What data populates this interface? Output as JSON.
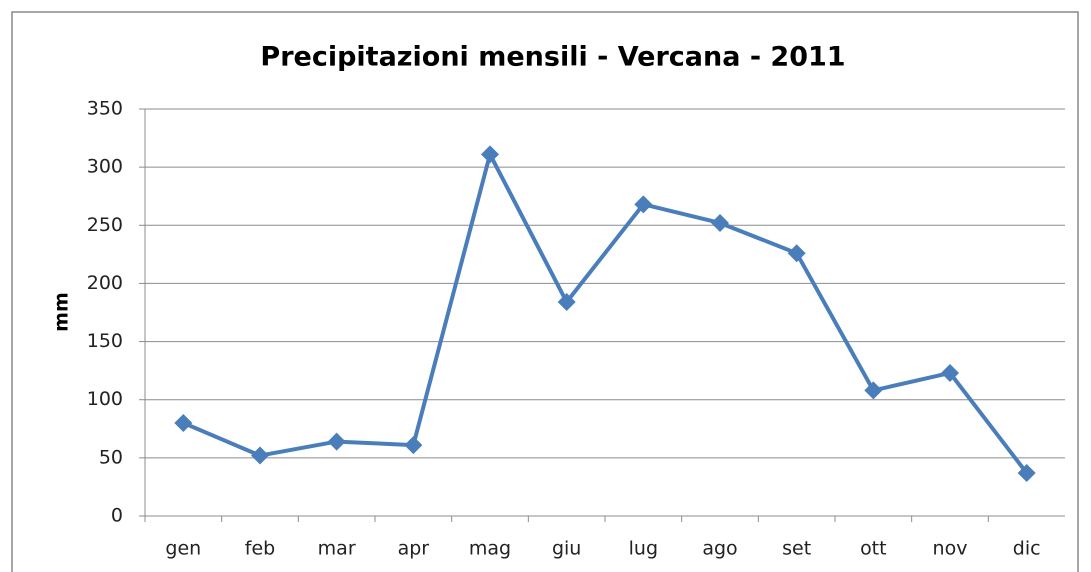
{
  "chart_data": {
    "type": "line",
    "title": "Precipitazioni mensili - Vercana - 2011",
    "y_label": "mm",
    "categories": [
      "gen",
      "feb",
      "mar",
      "apr",
      "mag",
      "giu",
      "lug",
      "ago",
      "set",
      "ott",
      "nov",
      "dic"
    ],
    "values": [
      80,
      52,
      64,
      61,
      311,
      184,
      268,
      252,
      226,
      108,
      123,
      37
    ],
    "color": "#4a7ebb",
    "ylim": [
      0,
      350
    ],
    "yticks": [
      0,
      50,
      100,
      150,
      200,
      250,
      300,
      350
    ],
    "grid": true
  }
}
